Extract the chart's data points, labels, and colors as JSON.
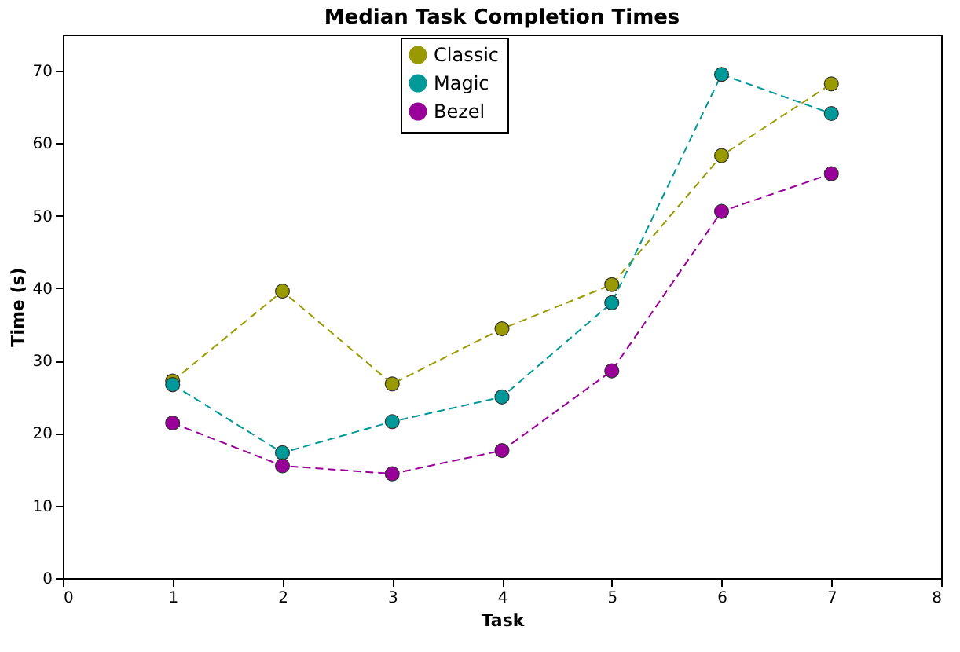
{
  "chart_data": {
    "type": "line",
    "title": "Median Task Completion Times",
    "xlabel": "Task",
    "ylabel": "Time (s)",
    "x": [
      1,
      2,
      3,
      4,
      5,
      6,
      7
    ],
    "series": [
      {
        "name": "Classic",
        "color": "#999900",
        "values": [
          27.2,
          39.6,
          26.8,
          34.4,
          40.5,
          58.3,
          68.2
        ]
      },
      {
        "name": "Magic",
        "color": "#009999",
        "values": [
          26.7,
          17.3,
          21.6,
          25.0,
          38.0,
          69.5,
          64.1
        ]
      },
      {
        "name": "Bezel",
        "color": "#990099",
        "values": [
          21.4,
          15.5,
          14.4,
          17.6,
          28.6,
          50.6,
          55.8
        ]
      }
    ],
    "xlim": [
      0,
      8
    ],
    "xticks": [
      0,
      1,
      2,
      3,
      4,
      5,
      6,
      7,
      8
    ],
    "ylim": [
      0,
      75
    ],
    "yticks": [
      0,
      10,
      20,
      30,
      40,
      50,
      60,
      70
    ],
    "grid": false,
    "legend": "top",
    "marker": "circle",
    "line_style": "dashed"
  }
}
